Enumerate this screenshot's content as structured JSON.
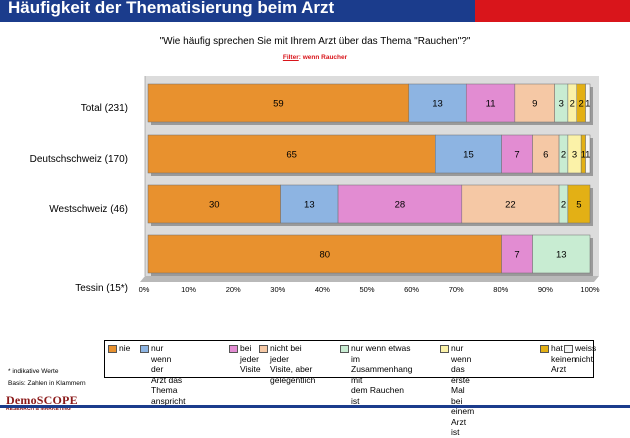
{
  "header": {
    "title": "Häufigkeit der Thematisierung beim Arzt"
  },
  "question": "\"Wie häufig sprechen Sie mit Ihrem Arzt über das Thema \"Rauchen\"?\"",
  "filter": {
    "label": "Filter",
    "value": ": wenn Raucher"
  },
  "colors": {
    "header_blue": "#1b3c8c",
    "header_red": "#d9151b",
    "filter_red": "#d9151b"
  },
  "chart_data": {
    "type": "bar",
    "orientation": "horizontal",
    "stacked": true,
    "categories": [
      "Total (231)",
      "Deutschschweiz (170)",
      "Westschweiz (46)",
      "Tessin (15*)"
    ],
    "series": [
      {
        "name": "nie",
        "color": "#e8912e",
        "values": [
          59,
          65,
          30,
          80
        ]
      },
      {
        "name": "nur wenn der\nArzt das Thema\nanspricht",
        "color": "#8db4e2",
        "values": [
          13,
          15,
          13,
          0
        ]
      },
      {
        "name": "bei\njeder\nVisite",
        "color": "#e28cd2",
        "values": [
          11,
          7,
          28,
          7
        ]
      },
      {
        "name": "nicht bei jeder\nVisite, aber\ngelegentlich",
        "color": "#f5c8a5",
        "values": [
          9,
          6,
          22,
          0
        ]
      },
      {
        "name": "nur wenn etwas im\nZusammenhang mit\ndem Rauchen ist",
        "color": "#c8ecd2",
        "values": [
          3,
          2,
          2,
          13
        ]
      },
      {
        "name": "nur wenn das\nerste Mal bei\neinem Arzt ist",
        "color": "#fbf2a8",
        "values": [
          2,
          3,
          0,
          0
        ]
      },
      {
        "name": "hat\nkeinen\nArzt",
        "color": "#e3b015",
        "values": [
          2,
          1,
          5,
          0
        ]
      },
      {
        "name": "weiss\nnicht",
        "color": "#f5f5f5",
        "values": [
          1,
          1,
          0,
          0
        ]
      }
    ],
    "xlim": [
      0,
      100
    ],
    "x_ticks": [
      "0%",
      "10%",
      "20%",
      "30%",
      "40%",
      "50%",
      "60%",
      "70%",
      "80%",
      "90%",
      "100%"
    ],
    "grid": false,
    "legend_position": "bottom"
  },
  "notes": {
    "indicative": "* indikative Werte",
    "basis": "Basis: Zahlen in Klammern"
  },
  "logo": {
    "name": "DemoSCOPE",
    "tagline": "RESEARCH & MARKETING"
  }
}
